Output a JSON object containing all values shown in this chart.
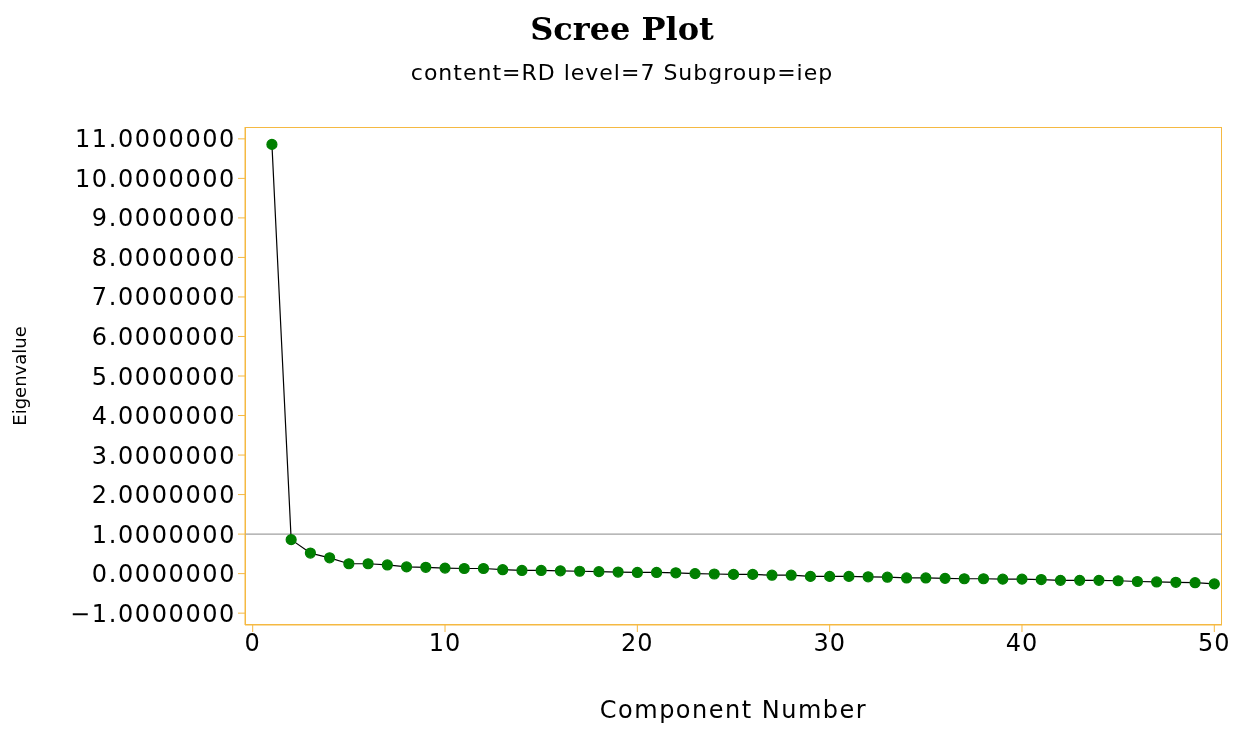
{
  "chart_data": {
    "type": "line",
    "title": "Scree Plot",
    "subtitle": "content=RD level=7 Subgroup=iep",
    "xlabel": "Component Number",
    "ylabel": "Eigenvalue",
    "x": [
      1,
      2,
      3,
      4,
      5,
      6,
      7,
      8,
      9,
      10,
      11,
      12,
      13,
      14,
      15,
      16,
      17,
      18,
      19,
      20,
      21,
      22,
      23,
      24,
      25,
      26,
      27,
      28,
      29,
      30,
      31,
      32,
      33,
      34,
      35,
      36,
      37,
      38,
      39,
      40,
      41,
      42,
      43,
      44,
      45,
      46,
      47,
      48,
      49,
      50
    ],
    "series": [
      {
        "color": "#007f00",
        "values": [
          10.86,
          0.86,
          0.52,
          0.4,
          0.25,
          0.25,
          0.22,
          0.17,
          0.16,
          0.14,
          0.13,
          0.13,
          0.1,
          0.08,
          0.08,
          0.07,
          0.06,
          0.05,
          0.04,
          0.03,
          0.03,
          0.02,
          0.0,
          -0.01,
          -0.02,
          -0.02,
          -0.04,
          -0.04,
          -0.07,
          -0.07,
          -0.07,
          -0.08,
          -0.09,
          -0.11,
          -0.11,
          -0.12,
          -0.13,
          -0.13,
          -0.14,
          -0.14,
          -0.15,
          -0.17,
          -0.17,
          -0.17,
          -0.18,
          -0.2,
          -0.21,
          -0.22,
          -0.23,
          -0.26
        ]
      }
    ],
    "xlim": [
      -0.4,
      50.4
    ],
    "xticks": [
      0,
      10,
      20,
      30,
      40,
      50
    ],
    "ylim": [
      -1.3,
      11.3
    ],
    "yticks": [
      {
        "value": -1,
        "label": "−1.0000000"
      },
      {
        "value": 0,
        "label": "0.0000000"
      },
      {
        "value": 1,
        "label": "1.0000000"
      },
      {
        "value": 2,
        "label": "2.0000000"
      },
      {
        "value": 3,
        "label": "3.0000000"
      },
      {
        "value": 4,
        "label": "4.0000000"
      },
      {
        "value": 5,
        "label": "5.0000000"
      },
      {
        "value": 6,
        "label": "6.0000000"
      },
      {
        "value": 7,
        "label": "7.0000000"
      },
      {
        "value": 8,
        "label": "8.0000000"
      },
      {
        "value": 9,
        "label": "9.0000000"
      },
      {
        "value": 10,
        "label": "10.0000000"
      },
      {
        "value": 11,
        "label": "11.0000000"
      }
    ],
    "ref_lines": [
      {
        "axis": "y",
        "value": 1,
        "color": "#a0a0a0"
      }
    ],
    "marker": "circle",
    "line_style": "solid",
    "grid": false,
    "legend": false
  }
}
